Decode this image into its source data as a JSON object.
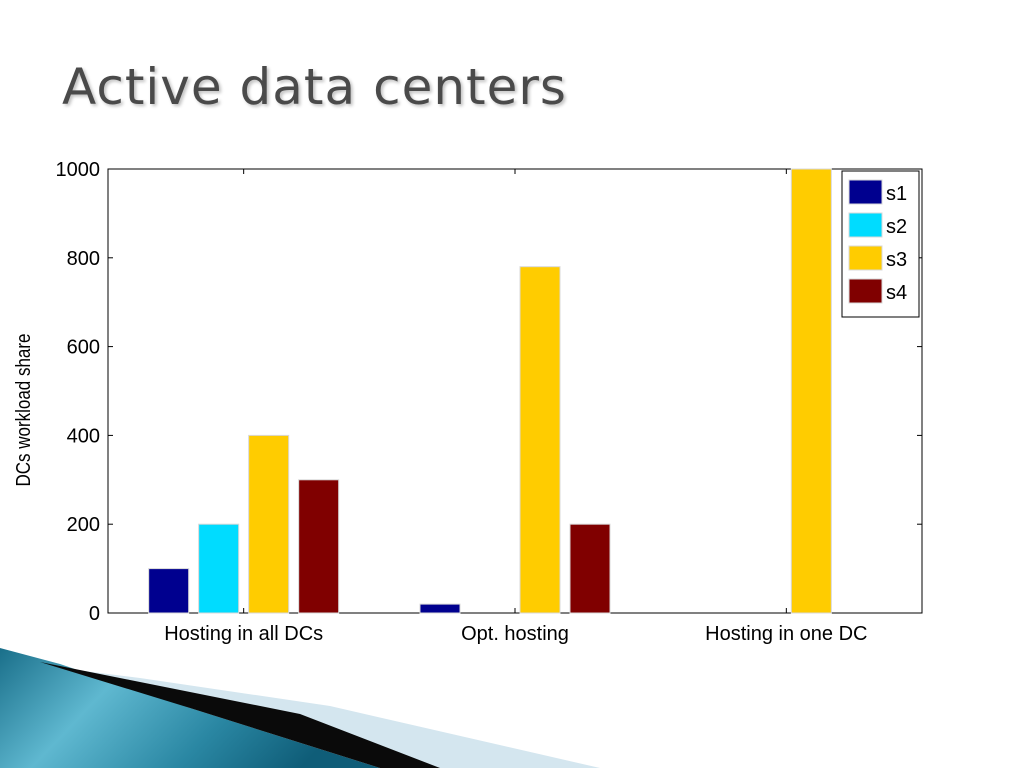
{
  "slide": {
    "title": "Active data centers"
  },
  "chart_data": {
    "type": "bar",
    "categories": [
      "Hosting in all DCs",
      "Opt. hosting",
      "Hosting in one DC"
    ],
    "series": [
      {
        "name": "s1",
        "color": "#00008f",
        "values": [
          100,
          20,
          0
        ]
      },
      {
        "name": "s2",
        "color": "#00dcff",
        "values": [
          200,
          0,
          0
        ]
      },
      {
        "name": "s3",
        "color": "#ffcc00",
        "values": [
          400,
          780,
          1000
        ]
      },
      {
        "name": "s4",
        "color": "#800000",
        "values": [
          300,
          200,
          0
        ]
      }
    ],
    "ylabel": "DCs workload share",
    "xlabel": "",
    "ylim": [
      0,
      1000
    ],
    "yticks": [
      0,
      200,
      400,
      600,
      800,
      1000
    ],
    "grid": false,
    "legend_position": "top-right"
  }
}
